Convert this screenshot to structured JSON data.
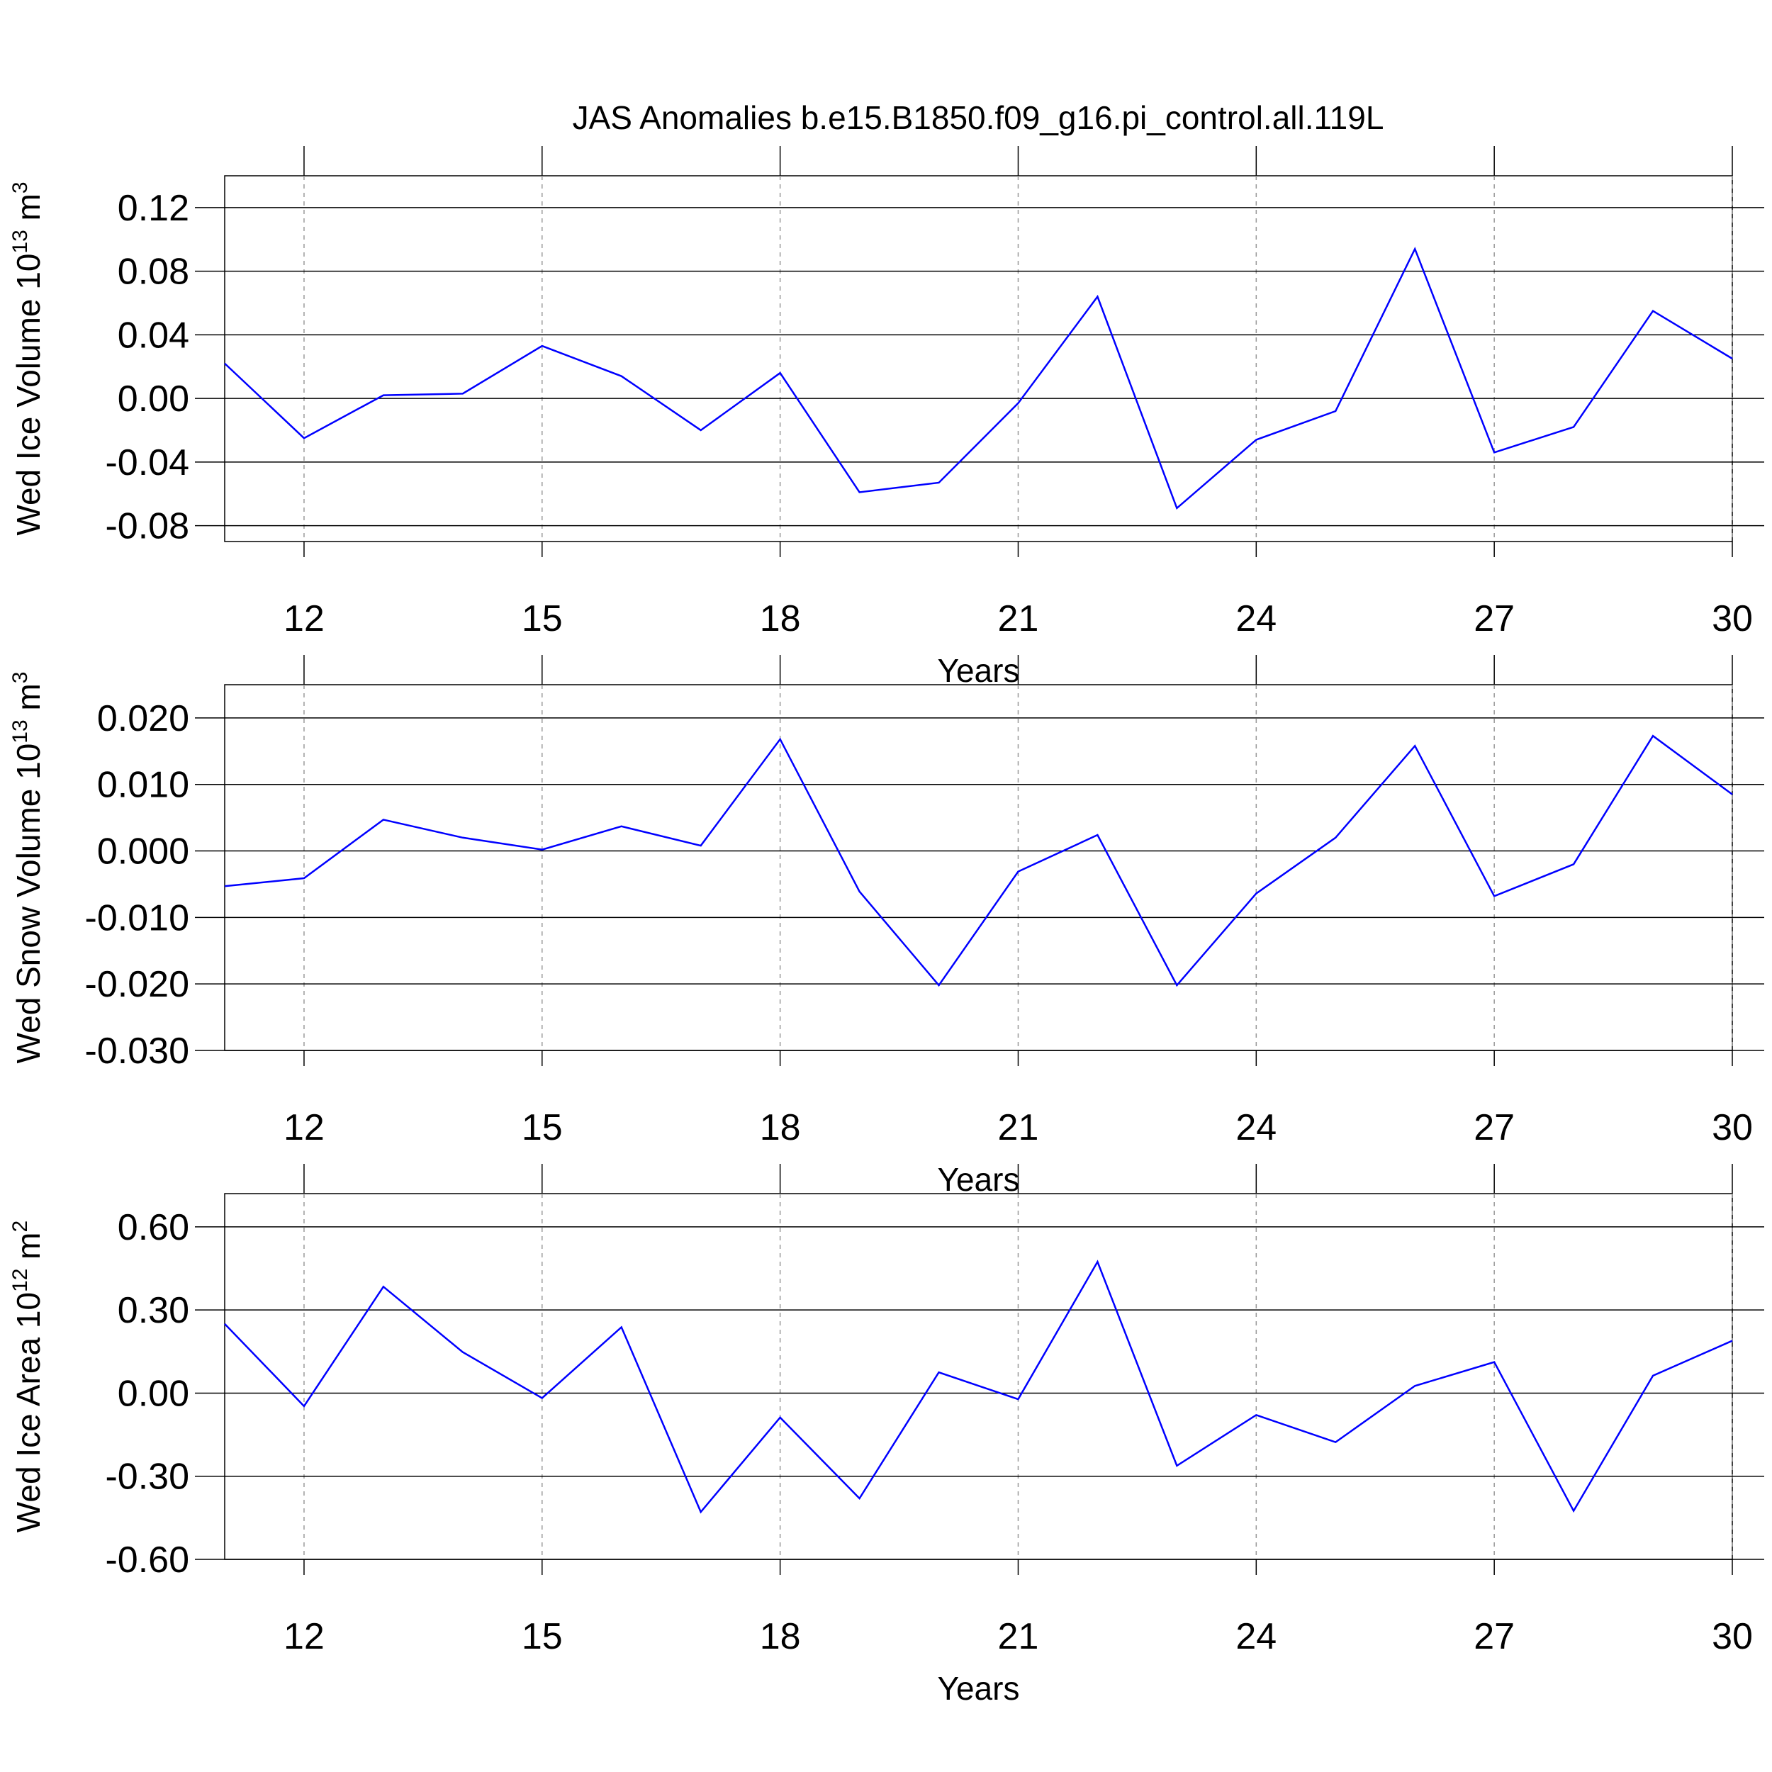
{
  "title": "JAS Anomalies b.e15.B1850.f09_g16.pi_control.all.119L",
  "chart_data": [
    {
      "type": "line",
      "xlabel": "Years",
      "ylabel": [
        "Wed Ice Volume 10",
        "13",
        " m",
        "3"
      ],
      "x": [
        11,
        12,
        13,
        14,
        15,
        16,
        17,
        18,
        19,
        20,
        21,
        22,
        23,
        24,
        25,
        26,
        27,
        28,
        29,
        30
      ],
      "series": [
        {
          "color": "#0000ff",
          "values": [
            0.022,
            -0.025,
            0.002,
            0.003,
            0.033,
            0.014,
            -0.02,
            0.016,
            -0.059,
            -0.053,
            -0.003,
            0.064,
            -0.069,
            -0.026,
            -0.008,
            0.094,
            -0.034,
            -0.018,
            0.055,
            0.025
          ]
        }
      ],
      "xlim": [
        11,
        30
      ],
      "xticks": [
        12,
        15,
        18,
        21,
        24,
        27,
        30
      ],
      "ylim": [
        -0.09,
        0.14
      ],
      "yticks": [
        {
          "value": -0.08,
          "label": "-0.08"
        },
        -0.04,
        {
          "value": 0,
          "label": "0.00"
        },
        0.04,
        0.08,
        0.12
      ],
      "grid": "x"
    },
    {
      "type": "line",
      "xlabel": "Years",
      "ylabel": [
        "Wed Snow Volume 10",
        "13",
        " m",
        "3"
      ],
      "x": [
        11,
        12,
        13,
        14,
        15,
        16,
        17,
        18,
        19,
        20,
        21,
        22,
        23,
        24,
        25,
        26,
        27,
        28,
        29,
        30
      ],
      "series": [
        {
          "color": "#0000ff",
          "values": [
            -0.0053,
            -0.0041,
            0.0047,
            0.002,
            0.0002,
            0.0037,
            0.0008,
            0.0168,
            -0.0061,
            -0.0202,
            -0.0031,
            0.0024,
            -0.0202,
            -0.0064,
            0.002,
            0.0158,
            -0.0068,
            -0.002,
            0.0173,
            0.0085
          ]
        }
      ],
      "xlim": [
        11,
        30
      ],
      "xticks": [
        12,
        15,
        18,
        21,
        24,
        27,
        30
      ],
      "ylim": [
        -0.03,
        0.025
      ],
      "yticks": [
        {
          "value": -0.03,
          "label": "-0.030"
        },
        {
          "value": -0.02,
          "label": "-0.020"
        },
        {
          "value": -0.01,
          "label": "-0.010"
        },
        {
          "value": 0,
          "label": "0.000"
        },
        {
          "value": 0.01,
          "label": "0.010"
        },
        {
          "value": 0.02,
          "label": "0.020"
        }
      ],
      "grid": "x"
    },
    {
      "type": "line",
      "xlabel": "Years",
      "ylabel": [
        "Wed Ice Area 10",
        "12",
        " m",
        "2"
      ],
      "x": [
        11,
        12,
        13,
        14,
        15,
        16,
        17,
        18,
        19,
        20,
        21,
        22,
        23,
        24,
        25,
        26,
        27,
        28,
        29,
        30
      ],
      "series": [
        {
          "color": "#0000ff",
          "values": [
            0.25,
            -0.047,
            0.384,
            0.148,
            -0.018,
            0.238,
            -0.429,
            -0.088,
            -0.38,
            0.075,
            -0.022,
            0.474,
            -0.262,
            -0.079,
            -0.177,
            0.026,
            0.112,
            -0.425,
            0.063,
            0.189
          ]
        }
      ],
      "xlim": [
        11,
        30
      ],
      "xticks": [
        12,
        15,
        18,
        21,
        24,
        27,
        30
      ],
      "ylim": [
        -0.6,
        0.72
      ],
      "yticks": [
        {
          "value": -0.6,
          "label": "-0.60"
        },
        {
          "value": -0.3,
          "label": "-0.30"
        },
        {
          "value": 0,
          "label": "0.00"
        },
        {
          "value": 0.3,
          "label": "0.30"
        },
        {
          "value": 0.6,
          "label": "0.60"
        }
      ],
      "grid": "x"
    }
  ]
}
